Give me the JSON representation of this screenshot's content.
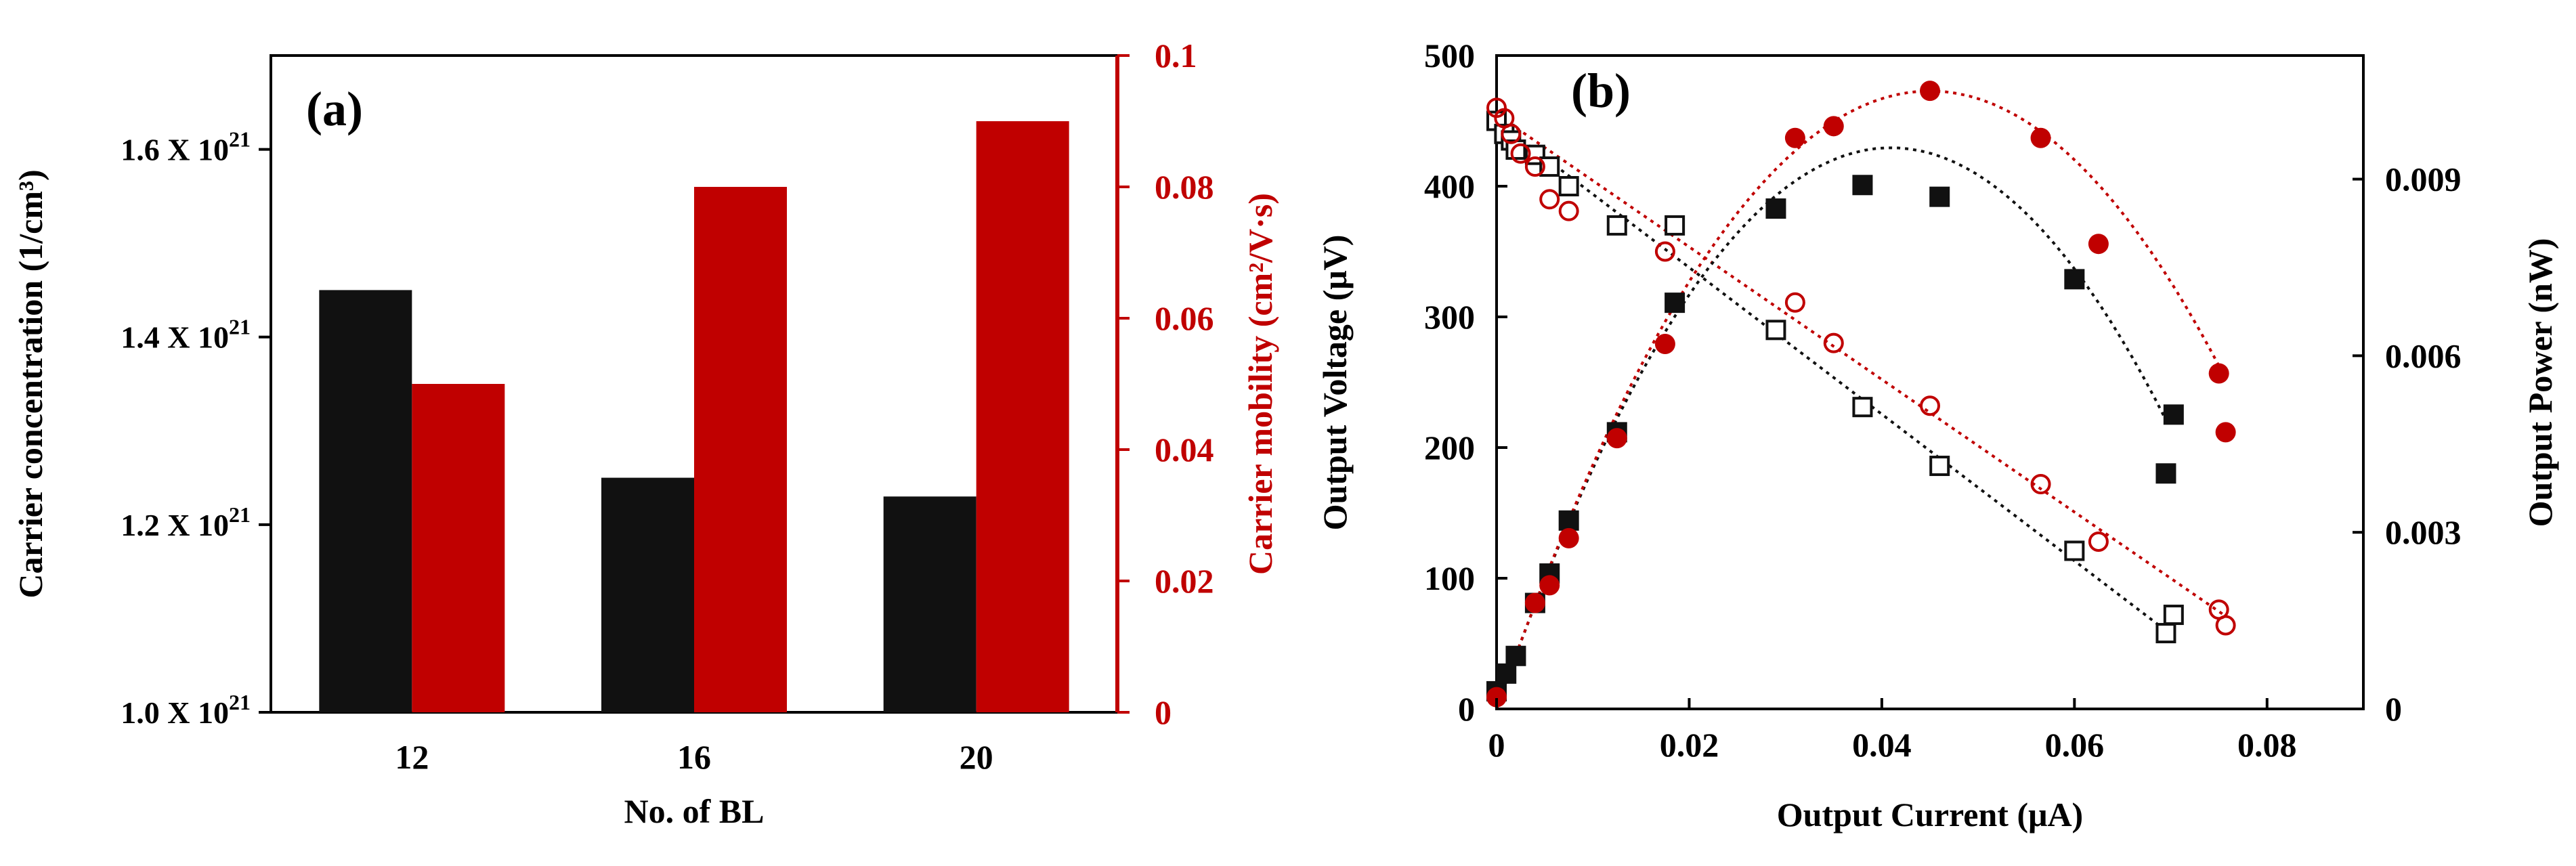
{
  "chart_data": [
    {
      "panel_label": "(a)",
      "type": "bar",
      "xlabel": "No. of BL",
      "categories": [
        "12",
        "16",
        "20"
      ],
      "left_axis": {
        "label": "Carrier concentration (1/cm³)",
        "ylim": [
          1.0,
          1.7
        ],
        "ticks": [
          {
            "value": 1.0,
            "mantissa": "1.0 X 10",
            "exp": "21"
          },
          {
            "value": 1.2,
            "mantissa": "1.2 X 10",
            "exp": "21"
          },
          {
            "value": 1.4,
            "mantissa": "1.4 X 10",
            "exp": "21"
          },
          {
            "value": 1.6,
            "mantissa": "1.6 X 10",
            "exp": "21"
          }
        ]
      },
      "right_axis": {
        "label": "Carrier mobility (cm²/V·s)",
        "ylim": [
          0,
          0.1
        ],
        "ticks": [
          {
            "value": 0,
            "label": "0"
          },
          {
            "value": 0.02,
            "label": "0.02"
          },
          {
            "value": 0.04,
            "label": "0.04"
          },
          {
            "value": 0.06,
            "label": "0.06"
          },
          {
            "value": 0.08,
            "label": "0.08"
          },
          {
            "value": 0.1,
            "label": "0.1"
          }
        ]
      },
      "series": [
        {
          "name": "Carrier concentration",
          "axis": "left",
          "color": "#111111",
          "values": [
            1.45,
            1.25,
            1.23
          ]
        },
        {
          "name": "Carrier mobility",
          "axis": "right",
          "color": "#c00000",
          "values": [
            0.05,
            0.08,
            0.09
          ]
        }
      ]
    },
    {
      "panel_label": "(b)",
      "type": "scatter",
      "xlabel": "Output Current (μA)",
      "xlim": [
        0,
        0.09
      ],
      "xticks": [
        {
          "value": 0,
          "label": "0"
        },
        {
          "value": 0.02,
          "label": "0.02"
        },
        {
          "value": 0.04,
          "label": "0.04"
        },
        {
          "value": 0.06,
          "label": "0.06"
        },
        {
          "value": 0.08,
          "label": "0.08"
        }
      ],
      "left_axis": {
        "label": "Output Voltage (μV)",
        "ylim": [
          0,
          500
        ],
        "ticks": [
          {
            "value": 0,
            "label": "0"
          },
          {
            "value": 100,
            "label": "100"
          },
          {
            "value": 200,
            "label": "200"
          },
          {
            "value": 300,
            "label": "300"
          },
          {
            "value": 400,
            "label": "400"
          },
          {
            "value": 500,
            "label": "500"
          }
        ]
      },
      "right_axis": {
        "label": "Output Power (nW)",
        "ylim": [
          0,
          0.0111
        ],
        "ticks": [
          {
            "value": 0,
            "label": "0"
          },
          {
            "value": 0.003,
            "label": "0.003"
          },
          {
            "value": 0.006,
            "label": "0.006"
          },
          {
            "value": 0.009,
            "label": "0.009"
          }
        ]
      },
      "series": [
        {
          "name": "Voltage (black)",
          "axis": "left",
          "marker": "open-square",
          "color": "#111111",
          "x": [
            0.0,
            0.0008,
            0.0015,
            0.002,
            0.004,
            0.0055,
            0.0075,
            0.0125,
            0.0185,
            0.029,
            0.038,
            0.046,
            0.06,
            0.0695,
            0.0703
          ],
          "y": [
            450,
            440,
            435,
            428,
            424,
            415,
            400,
            370,
            370,
            290,
            231,
            186,
            121,
            58,
            72
          ],
          "fit": {
            "kind": "line",
            "x": [
              0.0,
              0.0695
            ],
            "y": [
              450,
              60
            ]
          }
        },
        {
          "name": "Voltage (red)",
          "axis": "left",
          "marker": "open-circle",
          "color": "#c00000",
          "x": [
            0.0,
            0.0008,
            0.0015,
            0.0025,
            0.004,
            0.0055,
            0.0075,
            0.0175,
            0.031,
            0.035,
            0.045,
            0.0565,
            0.0625,
            0.075,
            0.0757
          ],
          "y": [
            460,
            452,
            440,
            425,
            415,
            390,
            381,
            350,
            311,
            280,
            232,
            172,
            128,
            76,
            64
          ],
          "fit": {
            "kind": "line",
            "x": [
              0.0,
              0.0755
            ],
            "y": [
              455,
              72
            ]
          }
        },
        {
          "name": "Power (black)",
          "axis": "right",
          "marker": "filled-square",
          "color": "#111111",
          "x": [
            0.0,
            0.001,
            0.002,
            0.004,
            0.0055,
            0.0075,
            0.0125,
            0.0185,
            0.029,
            0.038,
            0.046,
            0.06,
            0.0695,
            0.0703
          ],
          "y": [
            0.0003,
            0.0006,
            0.0009,
            0.0018,
            0.0023,
            0.0032,
            0.0047,
            0.0069,
            0.0085,
            0.0089,
            0.0087,
            0.0073,
            0.004,
            0.005
          ],
          "fit": {
            "kind": "quadratic",
            "x0": 0.0,
            "x1": 0.0695,
            "a": -5.68,
            "b": 0.4654,
            "c": 0.0
          }
        },
        {
          "name": "Power (red)",
          "axis": "right",
          "marker": "filled-circle",
          "color": "#c00000",
          "x": [
            0.0,
            0.004,
            0.0055,
            0.0075,
            0.0125,
            0.0175,
            0.031,
            0.035,
            0.045,
            0.0565,
            0.0625,
            0.075,
            0.0757
          ],
          "y": [
            0.0002,
            0.0018,
            0.0021,
            0.0029,
            0.0046,
            0.0062,
            0.0097,
            0.0099,
            0.0105,
            0.0097,
            0.0079,
            0.0057,
            0.0047
          ],
          "fit": {
            "kind": "quadratic",
            "x0": 0.0,
            "x1": 0.0755,
            "a": -5.185,
            "b": 0.4666,
            "c": 0.0
          }
        }
      ]
    }
  ]
}
